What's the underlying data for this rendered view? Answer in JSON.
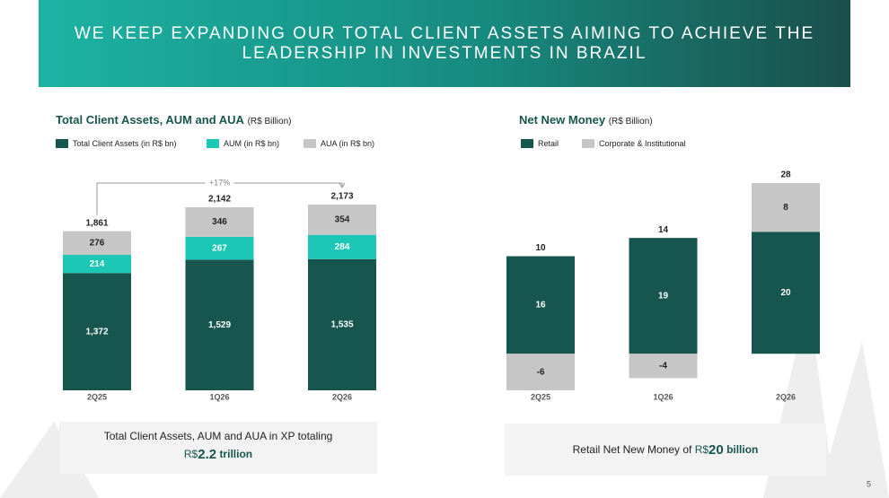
{
  "header": {
    "title_lines": [
      "WE KEEP EXPANDING OUR TOTAL CLIENT ASSETS AIMING TO ACHIEVE THE",
      "LEADERSHIP IN INVESTMENTS IN BRAZIL"
    ]
  },
  "chart_data": [
    {
      "type": "bar",
      "stacked": true,
      "title": "Total Client Assets, AUM and AUA",
      "subtitle": "(R$ Billion)",
      "categories": [
        "2Q25",
        "1Q26",
        "2Q26"
      ],
      "series": [
        {
          "name": "Total Client Assets (in R$ bn)",
          "color": "#17564f",
          "label_color": "#ffffff",
          "values": [
            1372,
            1529,
            1535
          ],
          "value_labels": [
            "1,372",
            "1,529",
            "1,535"
          ]
        },
        {
          "name": "AUM (in R$ bn)",
          "color": "#1cc7b6",
          "label_color": "#ffffff",
          "values": [
            214,
            267,
            284
          ]
        },
        {
          "name": "AUA (in R$ bn)",
          "color": "#c6c6c6",
          "label_color": "#222222",
          "values": [
            276,
            346,
            354
          ]
        }
      ],
      "totals": [
        1861,
        2142,
        2173
      ],
      "total_labels": [
        "1,861",
        "2,142",
        "2,173"
      ],
      "annotation": "+17%"
    },
    {
      "type": "bar",
      "stacked": true,
      "title": "Net New Money",
      "subtitle": "(R$ Billion)",
      "categories": [
        "2Q25",
        "1Q26",
        "2Q26"
      ],
      "series": [
        {
          "name": "Retail",
          "color": "#17564f",
          "label_color": "#ffffff",
          "values": [
            16,
            19,
            20
          ]
        },
        {
          "name": "Corporate & Institutional",
          "color": "#c6c6c6",
          "label_color": "#222222",
          "values": [
            -6,
            -4,
            8
          ]
        }
      ],
      "totals": [
        10,
        14,
        28
      ]
    }
  ],
  "callouts": [
    {
      "text": "Total Client Assets, AUM and AUA in XP totaling",
      "prefix": "R$",
      "amount": "2.2",
      "unit": "trillion"
    },
    {
      "text": "Retail Net New Money of",
      "prefix": "R$",
      "amount": "20",
      "unit": "billion"
    }
  ],
  "page_number": "5"
}
